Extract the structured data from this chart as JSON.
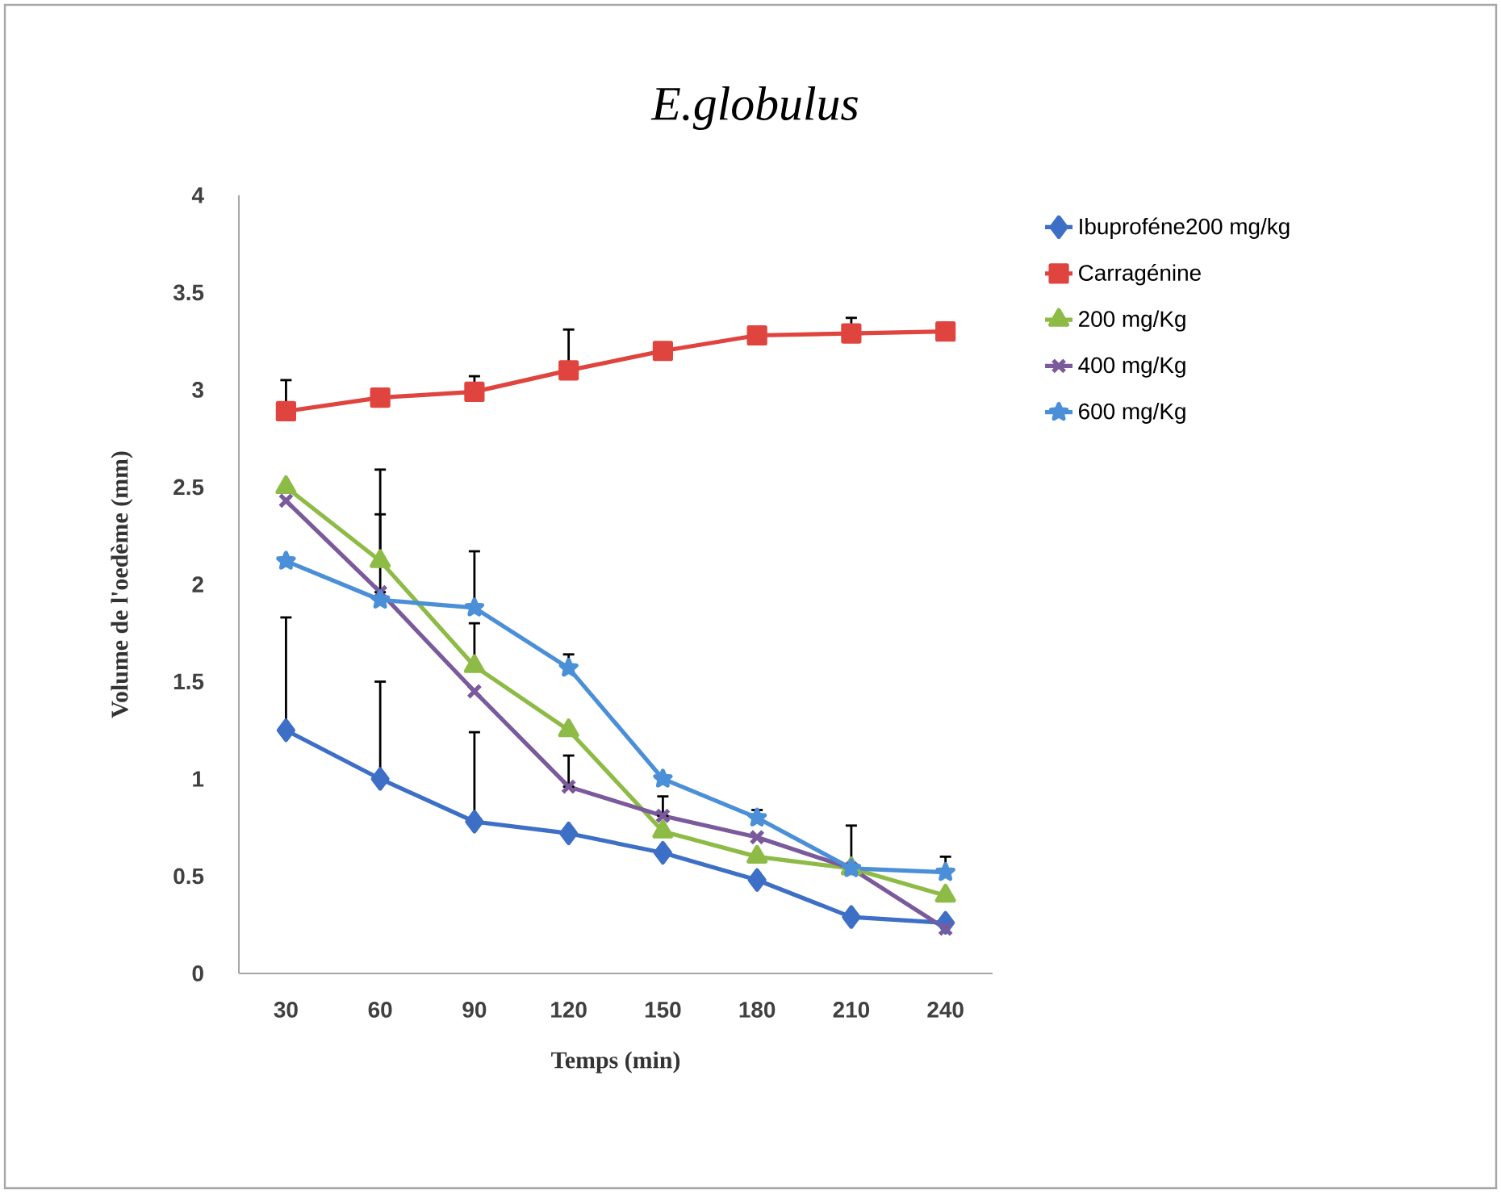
{
  "chart_data": {
    "type": "line",
    "title": "E.globulus",
    "xlabel": "Temps (min)",
    "ylabel": "Volume de l'oedème (mm)",
    "categories": [
      "30",
      "60",
      "90",
      "120",
      "150",
      "180",
      "210",
      "240"
    ],
    "ylim": [
      0,
      4
    ],
    "yticks": [
      0,
      0.5,
      1,
      1.5,
      2,
      2.5,
      3,
      3.5,
      4
    ],
    "grid": false,
    "legend": "right",
    "line_style": "solid",
    "series": [
      {
        "name": "Ibuproféne200 mg/kg",
        "color": "#3d6fc7",
        "marker": "diamond",
        "values": [
          1.25,
          1.0,
          0.78,
          0.72,
          0.62,
          0.48,
          0.29,
          0.26
        ],
        "errors": [
          [
            1.25,
            1.83
          ],
          [
            1.0,
            1.5
          ],
          [
            0.78,
            1.24
          ],
          null,
          null,
          null,
          null,
          null
        ]
      },
      {
        "name": "Carragénine",
        "color": "#e0443e",
        "marker": "square",
        "values": [
          2.89,
          2.96,
          2.99,
          3.1,
          3.2,
          3.28,
          3.29,
          3.3
        ],
        "errors": [
          [
            2.89,
            3.05
          ],
          null,
          [
            2.99,
            3.07
          ],
          [
            3.1,
            3.31
          ],
          null,
          null,
          [
            3.29,
            3.37
          ],
          null
        ]
      },
      {
        "name": "200 mg/Kg",
        "color": "#8dbb46",
        "marker": "triangle",
        "values": [
          2.5,
          2.12,
          1.58,
          1.25,
          0.73,
          0.6,
          0.54,
          0.4
        ],
        "errors": [
          null,
          [
            2.12,
            2.59
          ],
          [
            1.58,
            1.8
          ],
          null,
          null,
          null,
          null,
          null
        ]
      },
      {
        "name": "400 mg/Kg",
        "color": "#7b5a9c",
        "marker": "cross",
        "values": [
          2.43,
          1.96,
          1.45,
          0.96,
          0.81,
          0.7,
          0.54,
          0.23
        ],
        "errors": [
          null,
          [
            1.96,
            2.36
          ],
          null,
          [
            0.96,
            1.12
          ],
          [
            0.81,
            0.91
          ],
          null,
          null,
          null
        ]
      },
      {
        "name": "600 mg/Kg",
        "color": "#4a8fd8",
        "marker": "star",
        "values": [
          2.12,
          1.92,
          1.88,
          1.57,
          1.0,
          0.8,
          0.54,
          0.52
        ],
        "errors": [
          null,
          null,
          [
            1.88,
            2.17
          ],
          [
            1.57,
            1.64
          ],
          null,
          [
            0.8,
            0.84
          ],
          [
            0.54,
            0.76
          ],
          [
            0.52,
            0.6
          ]
        ]
      }
    ]
  }
}
